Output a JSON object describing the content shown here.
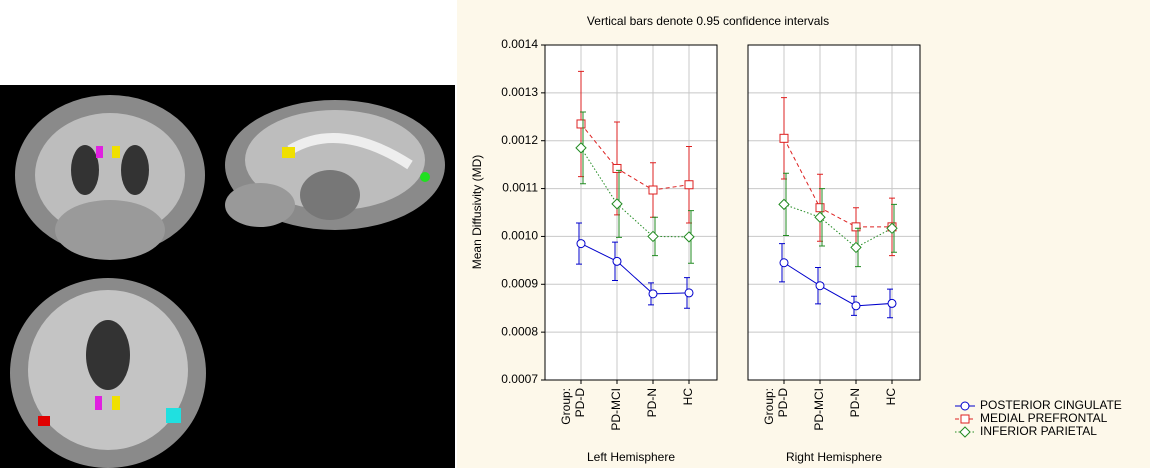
{
  "chart_data": {
    "type": "line",
    "title": "Vertical bars denote 0.95 confidence intervals",
    "ylabel": "Mean Diffusivity (MD)",
    "category_axis_label": "Group:",
    "categories": [
      "PD-D",
      "PD-MCI",
      "PD-N",
      "HC"
    ],
    "ylim": [
      0.0007,
      0.0014
    ],
    "yticks": [
      0.0007,
      0.0008,
      0.0009,
      {
        "value": 0.001,
        "label": "0.0010"
      },
      0.0011,
      0.0012,
      0.0013,
      0.0014
    ],
    "grid": true,
    "series": [
      {
        "name": "POSTERIOR CINGULATE",
        "color": "#0000cc",
        "marker": "circle",
        "dash": "solid"
      },
      {
        "name": "MEDIAL PREFRONTAL",
        "color": "#dd2020",
        "marker": "square",
        "dash": "dashed"
      },
      {
        "name": "INFERIOR PARIETAL",
        "color": "#228b22",
        "marker": "diamond",
        "dash": "dotted"
      }
    ],
    "panels": [
      {
        "label": "Left Hemisphere",
        "series": [
          {
            "values": [
              0.000985,
              0.000948,
              0.00088,
              0.000882
            ],
            "errors": [
              4.3e-05,
              4e-05,
              2.3e-05,
              3.2e-05
            ]
          },
          {
            "values": [
              0.001235,
              0.001142,
              0.001097,
              0.001108
            ],
            "errors": [
              0.00011,
              9.7e-05,
              5.7e-05,
              8e-05
            ]
          },
          {
            "values": [
              0.001185,
              0.001068,
              0.001,
              0.000999
            ],
            "errors": [
              7.5e-05,
              7e-05,
              4e-05,
              5.5e-05
            ]
          }
        ]
      },
      {
        "label": "Right Hemisphere",
        "series": [
          {
            "values": [
              0.000945,
              0.000897,
              0.000855,
              0.00086
            ],
            "errors": [
              4e-05,
              3.8e-05,
              2e-05,
              3e-05
            ]
          },
          {
            "values": [
              0.001205,
              0.00106,
              0.00102,
              0.00102
            ],
            "errors": [
              8.5e-05,
              7e-05,
              4e-05,
              6e-05
            ]
          },
          {
            "values": [
              0.001067,
              0.00104,
              0.000977,
              0.001017
            ],
            "errors": [
              6.5e-05,
              6e-05,
              4e-05,
              5e-05
            ]
          }
        ]
      }
    ]
  }
}
